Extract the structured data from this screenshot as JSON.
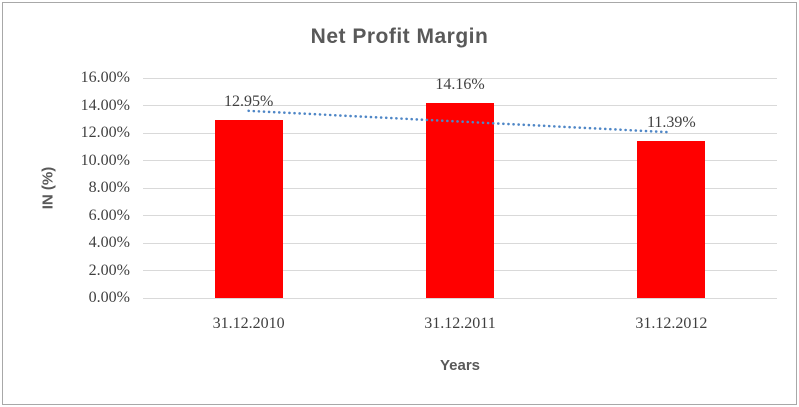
{
  "chart_data": {
    "type": "bar",
    "title": "Net Profit Margin",
    "xlabel": "Years",
    "ylabel": "IN (%)",
    "categories": [
      "31.12.2010",
      "31.12.2011",
      "31.12.2012"
    ],
    "values": [
      12.95,
      14.16,
      11.39
    ],
    "data_labels": [
      "12.95%",
      "14.16%",
      "11.39%"
    ],
    "y_ticks": {
      "values": [
        16,
        14,
        12,
        10,
        8,
        6,
        4,
        2,
        0
      ],
      "labels": [
        "16.00%",
        "14.00%",
        "12.00%",
        "10.00%",
        "8.00%",
        "6.00%",
        "4.00%",
        "2.00%",
        "0.00%"
      ]
    },
    "ylim": [
      0,
      16
    ],
    "grid": true,
    "legend": "none",
    "bar_color": "#FF0000",
    "trendline": {
      "type": "linear",
      "style": "dotted",
      "color": "#4E86C6",
      "start_value": 13.61,
      "end_value": 12.05
    },
    "colors": {
      "title_text": "#595959",
      "axis_title_text": "#595959",
      "tick_text": "#3F3F3F",
      "data_label_text": "#3F3F3F",
      "gridline": "#D9D9D9",
      "plot_bg": "#FFFFFF",
      "border": "#A8A8A8"
    }
  }
}
